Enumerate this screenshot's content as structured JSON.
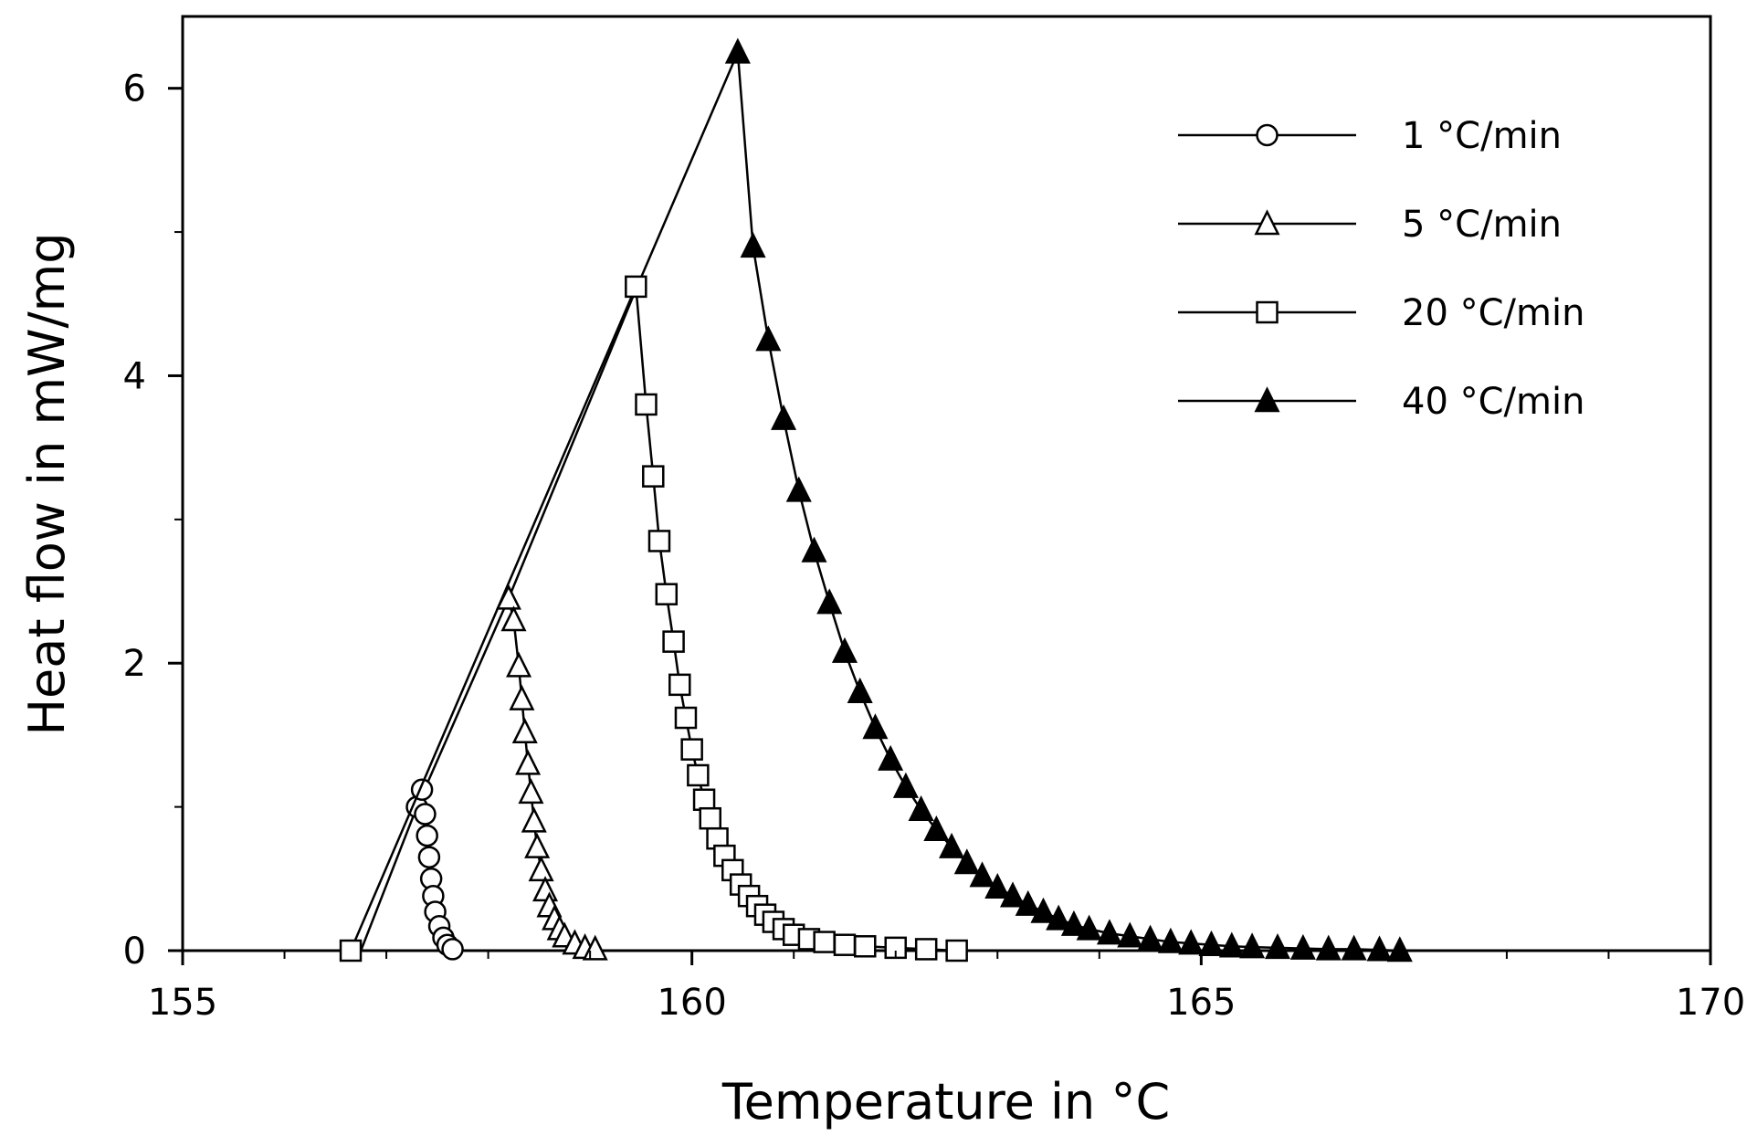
{
  "chart_data": {
    "type": "line",
    "title": "",
    "xlabel": "Temperature in °C",
    "ylabel": "Heat flow in mW/mg",
    "xlim": [
      155,
      170
    ],
    "ylim": [
      0,
      6.5
    ],
    "xticks": [
      155,
      160,
      165,
      170
    ],
    "xtick_labels": [
      "155",
      "160",
      "165",
      "170"
    ],
    "yticks": [
      0,
      2,
      4,
      6
    ],
    "ytick_labels": [
      "0",
      "2",
      "4",
      "6"
    ],
    "grid": false,
    "legend_position": "top-right",
    "envelope": {
      "x": [
        156.6,
        156.75,
        157.3,
        158.2,
        159.45,
        160.45
      ],
      "y": [
        0,
        0,
        1.0,
        2.45,
        4.6,
        6.25
      ]
    },
    "series": [
      {
        "name": "1 °C/min",
        "marker": "circle-open",
        "x": [
          157.3,
          157.35,
          157.38,
          157.4,
          157.42,
          157.44,
          157.46,
          157.48,
          157.52,
          157.56,
          157.6,
          157.65
        ],
        "y": [
          1.0,
          1.12,
          0.95,
          0.8,
          0.65,
          0.5,
          0.38,
          0.27,
          0.17,
          0.09,
          0.04,
          0.01
        ]
      },
      {
        "name": "5 °C/min",
        "marker": "triangle-open",
        "x": [
          158.2,
          158.25,
          158.3,
          158.33,
          158.36,
          158.39,
          158.42,
          158.45,
          158.48,
          158.52,
          158.56,
          158.6,
          158.65,
          158.7,
          158.75,
          158.85,
          158.95,
          159.05
        ],
        "y": [
          2.45,
          2.3,
          1.98,
          1.75,
          1.52,
          1.3,
          1.1,
          0.9,
          0.72,
          0.56,
          0.42,
          0.31,
          0.22,
          0.15,
          0.1,
          0.05,
          0.02,
          0.01
        ]
      },
      {
        "name": "20 °C/min",
        "marker": "square-open",
        "x": [
          156.65,
          159.45,
          159.55,
          159.62,
          159.68,
          159.75,
          159.82,
          159.88,
          159.94,
          160.0,
          160.06,
          160.12,
          160.18,
          160.25,
          160.32,
          160.4,
          160.48,
          160.56,
          160.64,
          160.72,
          160.8,
          160.9,
          161.0,
          161.15,
          161.3,
          161.5,
          161.7,
          162.0,
          162.3,
          162.6
        ],
        "y": [
          0,
          4.62,
          3.8,
          3.3,
          2.85,
          2.48,
          2.15,
          1.85,
          1.62,
          1.4,
          1.22,
          1.05,
          0.92,
          0.78,
          0.66,
          0.56,
          0.46,
          0.38,
          0.31,
          0.25,
          0.2,
          0.15,
          0.11,
          0.08,
          0.06,
          0.04,
          0.03,
          0.02,
          0.01,
          0.0
        ]
      },
      {
        "name": "40 °C/min",
        "marker": "triangle-filled",
        "x": [
          160.45,
          160.6,
          160.75,
          160.9,
          161.05,
          161.2,
          161.35,
          161.5,
          161.65,
          161.8,
          161.95,
          162.1,
          162.25,
          162.4,
          162.55,
          162.7,
          162.85,
          163.0,
          163.15,
          163.3,
          163.45,
          163.6,
          163.75,
          163.9,
          164.1,
          164.3,
          164.5,
          164.7,
          164.9,
          165.1,
          165.3,
          165.5,
          165.75,
          166.0,
          166.25,
          166.5,
          166.75,
          166.95
        ],
        "y": [
          6.25,
          4.9,
          4.25,
          3.7,
          3.2,
          2.78,
          2.42,
          2.08,
          1.8,
          1.55,
          1.33,
          1.14,
          0.98,
          0.84,
          0.72,
          0.61,
          0.52,
          0.44,
          0.38,
          0.32,
          0.27,
          0.22,
          0.18,
          0.15,
          0.12,
          0.1,
          0.08,
          0.06,
          0.05,
          0.04,
          0.03,
          0.025,
          0.02,
          0.015,
          0.01,
          0.01,
          0.005,
          0.0
        ]
      }
    ]
  }
}
